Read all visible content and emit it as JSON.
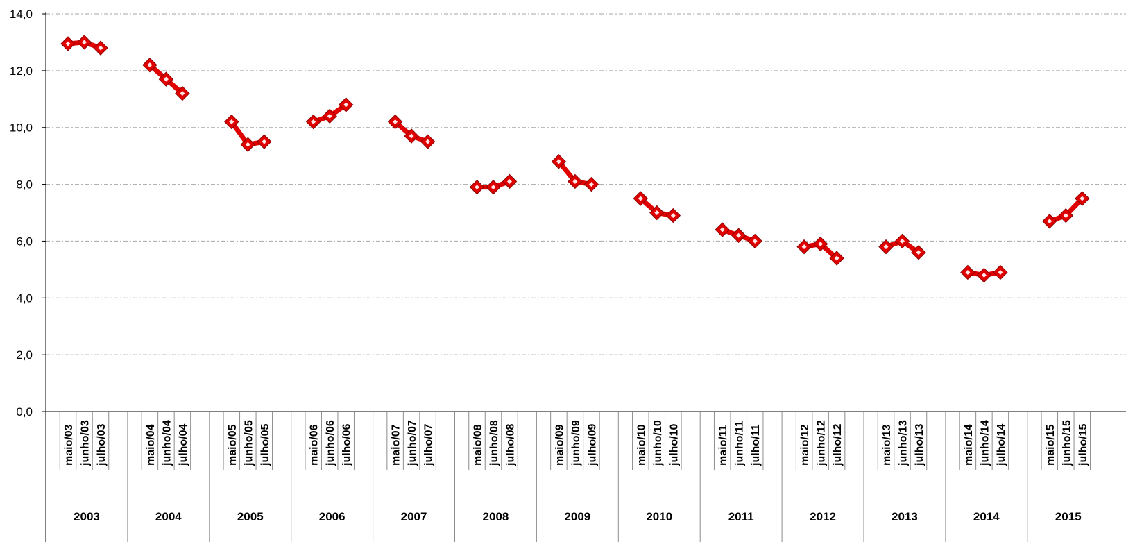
{
  "chart_data": {
    "type": "line",
    "title": "",
    "xlabel": "",
    "ylabel": "",
    "ylim": [
      0,
      14
    ],
    "yticks": [
      "0,0",
      "2,0",
      "4,0",
      "6,0",
      "8,0",
      "10,0",
      "12,0",
      "14,0"
    ],
    "grid": "horizontal dash-dot",
    "marker": "diamond",
    "colors": {
      "series": "#e00000",
      "grid": "#a6a6a6",
      "axis": "#000000",
      "category_lines": "#8c8c8c"
    },
    "groups": [
      {
        "year": "2003",
        "labels": [
          "maio/03",
          "junho/03",
          "julho/03"
        ],
        "values": [
          12.95,
          13.0,
          12.8
        ]
      },
      {
        "year": "2004",
        "labels": [
          "maio/04",
          "junho/04",
          "julho/04"
        ],
        "values": [
          12.2,
          11.7,
          11.2
        ]
      },
      {
        "year": "2005",
        "labels": [
          "maio/05",
          "junho/05",
          "julho/05"
        ],
        "values": [
          10.2,
          9.4,
          9.5
        ]
      },
      {
        "year": "2006",
        "labels": [
          "maio/06",
          "junho/06",
          "julho/06"
        ],
        "values": [
          10.2,
          10.4,
          10.8
        ]
      },
      {
        "year": "2007",
        "labels": [
          "maio/07",
          "junho/07",
          "julho/07"
        ],
        "values": [
          10.2,
          9.7,
          9.5
        ]
      },
      {
        "year": "2008",
        "labels": [
          "maio/08",
          "junho/08",
          "julho/08"
        ],
        "values": [
          7.9,
          7.9,
          8.1
        ]
      },
      {
        "year": "2009",
        "labels": [
          "maio/09",
          "junho/09",
          "julho/09"
        ],
        "values": [
          8.8,
          8.1,
          8.0
        ]
      },
      {
        "year": "2010",
        "labels": [
          "maio/10",
          "junho/10",
          "julho/10"
        ],
        "values": [
          7.5,
          7.0,
          6.9
        ]
      },
      {
        "year": "2011",
        "labels": [
          "maio/11",
          "junho/11",
          "julho/11"
        ],
        "values": [
          6.4,
          6.2,
          6.0
        ]
      },
      {
        "year": "2012",
        "labels": [
          "maio/12",
          "junho/12",
          "julho/12"
        ],
        "values": [
          5.8,
          5.9,
          5.4
        ]
      },
      {
        "year": "2013",
        "labels": [
          "maio/13",
          "junho/13",
          "julho/13"
        ],
        "values": [
          5.8,
          6.0,
          5.6
        ]
      },
      {
        "year": "2014",
        "labels": [
          "maio/14",
          "junho/14",
          "julho/14"
        ],
        "values": [
          4.9,
          4.8,
          4.9
        ]
      },
      {
        "year": "2015",
        "labels": [
          "maio/15",
          "junho/15",
          "julho/15"
        ],
        "values": [
          6.7,
          6.9,
          7.5
        ]
      }
    ]
  }
}
